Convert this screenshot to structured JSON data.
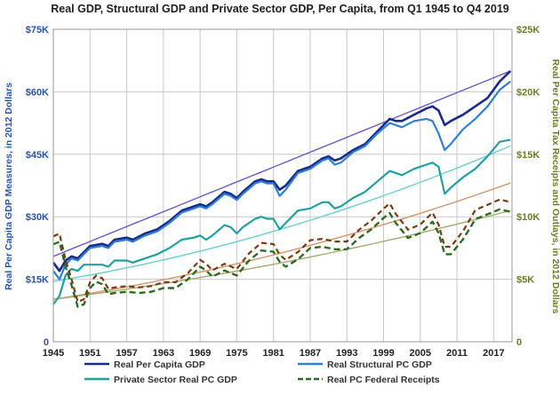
{
  "chart_data": {
    "type": "line",
    "title": "Real GDP, Structural GDP and Private Sector GDP, Per Capita, from Q1 1945 to Q4 2019",
    "ylabel_left": "Real Per Capita GDP Measures, in 2012 Dollars",
    "ylabel_right": "Real Per Capita Tax Receipts and Outlays, in 2012 Dollars",
    "x_range": [
      1945,
      2020
    ],
    "ylim_left": [
      0,
      75000
    ],
    "ylim_right": [
      0,
      25000
    ],
    "grid": true,
    "legend_position": "bottom",
    "x_ticks": [
      "1945",
      "1951",
      "1957",
      "1963",
      "1969",
      "1975",
      "1981",
      "1987",
      "1993",
      "1999",
      "2005",
      "2011",
      "2017"
    ],
    "y_ticks_left": [
      "0",
      "$15K",
      "$30K",
      "$45K",
      "$60K",
      "$75K"
    ],
    "y_ticks_right": [
      "0",
      "$5K",
      "$10K",
      "$15K",
      "$20K",
      "$25K"
    ],
    "colors": {
      "gdp": "#1a2a8c",
      "structural": "#2e7fd6",
      "private": "#20a0a0",
      "receipts": "#2e6b1e",
      "trend_gdp": "#6a5acd",
      "trend_private": "#66d0cc",
      "trend_receipts_a": "#d4956a",
      "trend_receipts_b": "#a8a872",
      "grid": "#c8c8c8"
    },
    "series": [
      {
        "name": "Real Per Capita GDP",
        "axis": "left",
        "x": [
          1945,
          1946,
          1947,
          1948,
          1949,
          1950,
          1951,
          1953,
          1954,
          1955,
          1957,
          1958,
          1960,
          1962,
          1964,
          1966,
          1968,
          1969,
          1970,
          1971,
          1973,
          1974,
          1975,
          1976,
          1978,
          1979,
          1980,
          1981,
          1982,
          1983,
          1985,
          1987,
          1989,
          1990,
          1991,
          1992,
          1994,
          1996,
          1998,
          2000,
          2001,
          2002,
          2004,
          2006,
          2007,
          2008,
          2009,
          2010,
          2012,
          2014,
          2016,
          2018,
          2019.75
        ],
        "y": [
          19000,
          17000,
          19500,
          20500,
          20000,
          21500,
          23000,
          23500,
          23000,
          24500,
          25000,
          24500,
          26000,
          27000,
          29000,
          31500,
          32500,
          33000,
          32500,
          33500,
          36000,
          35500,
          34500,
          36000,
          38500,
          39000,
          38500,
          38500,
          36500,
          37500,
          41000,
          42000,
          44000,
          44500,
          43500,
          44000,
          46000,
          47500,
          50500,
          53500,
          53000,
          53000,
          54500,
          56000,
          56500,
          55500,
          52000,
          53000,
          54500,
          56500,
          58500,
          62500,
          65000
        ]
      },
      {
        "name": "Real Structural PC GDP",
        "axis": "left",
        "x": [
          1945,
          1946,
          1947,
          1948,
          1949,
          1950,
          1951,
          1953,
          1954,
          1955,
          1957,
          1958,
          1960,
          1962,
          1964,
          1966,
          1968,
          1969,
          1970,
          1971,
          1973,
          1974,
          1975,
          1976,
          1978,
          1979,
          1980,
          1981,
          1982,
          1983,
          1985,
          1987,
          1989,
          1990,
          1991,
          1992,
          1994,
          1996,
          1998,
          2000,
          2001,
          2002,
          2004,
          2006,
          2007,
          2008,
          2009,
          2010,
          2012,
          2014,
          2016,
          2018,
          2019.75
        ],
        "y": [
          17000,
          15000,
          18500,
          20000,
          19500,
          21000,
          22500,
          23000,
          22500,
          24000,
          24500,
          24000,
          25500,
          26500,
          28500,
          31000,
          32000,
          32500,
          32000,
          33000,
          35500,
          35000,
          34000,
          35500,
          38000,
          38500,
          38000,
          38000,
          35000,
          36500,
          40500,
          41500,
          43500,
          44000,
          42500,
          43000,
          45500,
          47000,
          50000,
          52500,
          52000,
          51500,
          53000,
          53500,
          53000,
          50000,
          46000,
          47500,
          51000,
          53500,
          56500,
          60500,
          62500
        ]
      },
      {
        "name": "Private Sector Real PC GDP",
        "axis": "left",
        "x": [
          1945,
          1946,
          1947,
          1948,
          1949,
          1950,
          1951,
          1953,
          1954,
          1955,
          1957,
          1958,
          1960,
          1962,
          1964,
          1966,
          1968,
          1969,
          1970,
          1971,
          1973,
          1974,
          1975,
          1976,
          1978,
          1979,
          1980,
          1981,
          1982,
          1983,
          1985,
          1987,
          1989,
          1990,
          1991,
          1992,
          1994,
          1996,
          1998,
          2000,
          2001,
          2002,
          2004,
          2006,
          2007,
          2008,
          2009,
          2010,
          2012,
          2014,
          2016,
          2018,
          2019.75
        ],
        "y": [
          9000,
          11000,
          16000,
          17500,
          17000,
          18500,
          18500,
          18500,
          18000,
          19500,
          19500,
          19000,
          20000,
          21000,
          22500,
          24500,
          25000,
          25500,
          24500,
          25500,
          28000,
          27500,
          26000,
          27500,
          29500,
          30000,
          29500,
          29500,
          27000,
          28500,
          31500,
          32000,
          33500,
          33500,
          32000,
          32500,
          34500,
          36000,
          38500,
          41000,
          40500,
          40000,
          41500,
          42500,
          43000,
          42000,
          35500,
          37000,
          39500,
          41500,
          44500,
          48000,
          48500
        ]
      },
      {
        "name": "Real PC Federal Receipts",
        "axis": "right",
        "x": [
          1945,
          1946,
          1947,
          1948,
          1949,
          1950,
          1951,
          1952,
          1953,
          1954,
          1955,
          1957,
          1959,
          1961,
          1963,
          1965,
          1967,
          1969,
          1970,
          1971,
          1973,
          1975,
          1977,
          1979,
          1981,
          1982,
          1983,
          1985,
          1987,
          1989,
          1991,
          1993,
          1995,
          1997,
          1999,
          2000,
          2001,
          2003,
          2005,
          2007,
          2008,
          2009,
          2010,
          2012,
          2014,
          2016,
          2018,
          2019.75
        ],
        "y": [
          7800,
          8000,
          6000,
          4500,
          2800,
          3000,
          4300,
          4800,
          4600,
          3800,
          3900,
          4000,
          3900,
          4000,
          4300,
          4300,
          5000,
          6000,
          5700,
          5200,
          5700,
          5300,
          6500,
          7300,
          7200,
          6400,
          6000,
          6600,
          7500,
          7600,
          7400,
          7400,
          8300,
          9000,
          9900,
          10300,
          9500,
          8300,
          8700,
          9600,
          8700,
          7000,
          7000,
          8200,
          9800,
          10200,
          10600,
          10400
        ]
      }
    ],
    "trendlines": [
      {
        "name": "trend-gdp",
        "axis": "left",
        "start": [
          1945,
          20500
        ],
        "end": [
          2019.75,
          65000
        ]
      },
      {
        "name": "trend-private",
        "axis": "left",
        "start": [
          1945,
          14500
        ],
        "end": [
          2019.75,
          47000
        ],
        "curve": 0.45
      },
      {
        "name": "trend-receipts-a",
        "axis": "right",
        "start": [
          1945,
          3400
        ],
        "end": [
          2019.75,
          12700
        ],
        "curve": 0.4
      },
      {
        "name": "trend-receipts-b",
        "axis": "right",
        "start": [
          1945,
          3400
        ],
        "end": [
          2019.75,
          10500
        ],
        "curve": 0.35
      }
    ]
  }
}
